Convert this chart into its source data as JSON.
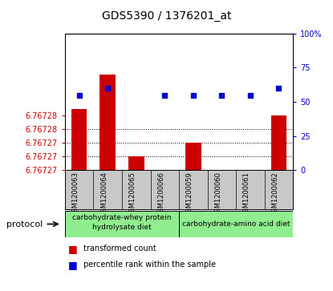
{
  "title": "GDS5390 / 1376201_at",
  "categories": [
    "GSM1200063",
    "GSM1200064",
    "GSM1200065",
    "GSM1200066",
    "GSM1200059",
    "GSM1200060",
    "GSM1200061",
    "GSM1200062"
  ],
  "red_values": [
    6.767279,
    6.767284,
    6.767272,
    6.767268,
    6.767274,
    6.767269,
    6.767268,
    6.767278
  ],
  "blue_values": [
    55,
    60,
    null,
    55,
    55,
    55,
    55,
    60
  ],
  "y_min": 6.76727,
  "y_max": 6.76729,
  "y_tick_vals": [
    6.76727,
    6.767272,
    6.767274,
    6.767276,
    6.767278
  ],
  "y_tick_labels": [
    "6.76727",
    "6.76727",
    "6.76727",
    "6.76728",
    "6.76728"
  ],
  "right_y_ticks": [
    0,
    25,
    50,
    75,
    100
  ],
  "bar_color": "#CC0000",
  "dot_color": "#0000CC",
  "label_color_left": "#CC0000",
  "label_color_right": "#0000CC",
  "gray_bg": "#C8C8C8",
  "plot_bg": "#FFFFFF",
  "green_bg": "#90EE90",
  "group1_label": "carbohydrate-whey protein\nhydrolysate diet",
  "group2_label": "carbohydrate-amino acid diet",
  "legend_label1": "transformed count",
  "legend_label2": "percentile rank within the sample"
}
